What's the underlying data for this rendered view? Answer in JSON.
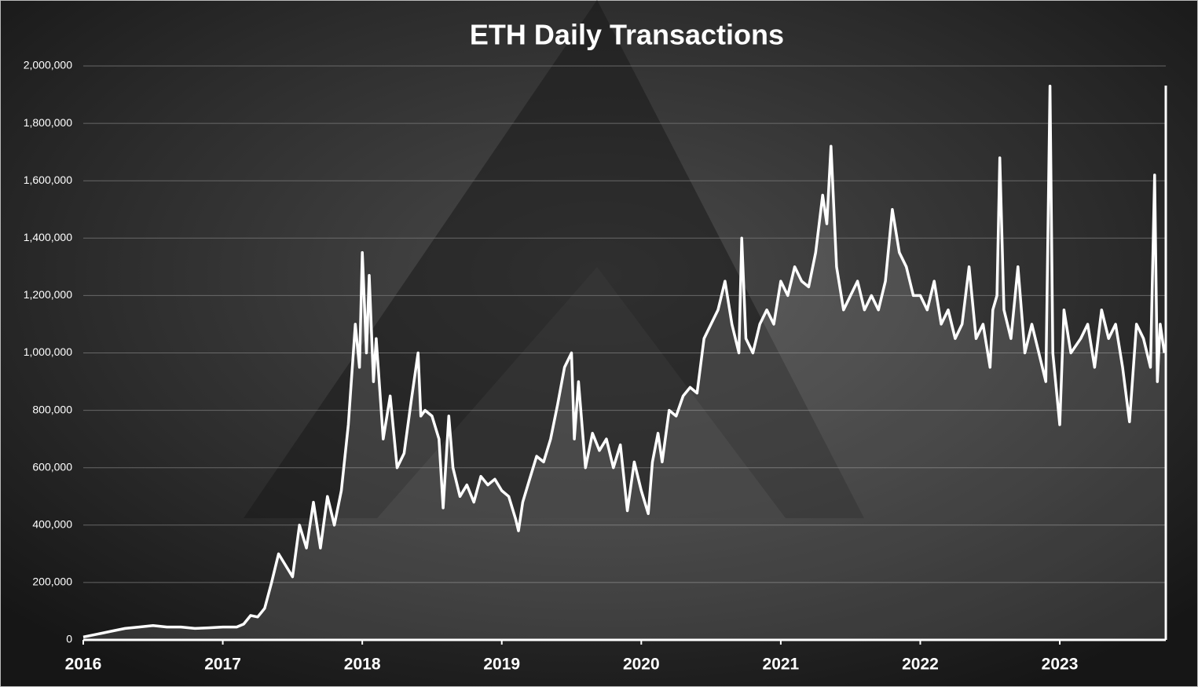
{
  "chart_data": {
    "type": "line",
    "title": "ETH Daily Transactions",
    "x": [
      2016.0,
      2016.1,
      2016.2,
      2016.3,
      2016.4,
      2016.5,
      2016.6,
      2016.7,
      2016.8,
      2016.9,
      2017.0,
      2017.1,
      2017.15,
      2017.2,
      2017.25,
      2017.3,
      2017.35,
      2017.4,
      2017.45,
      2017.5,
      2017.55,
      2017.6,
      2017.65,
      2017.7,
      2017.75,
      2017.8,
      2017.85,
      2017.9,
      2017.95,
      2017.98,
      2018.0,
      2018.03,
      2018.05,
      2018.08,
      2018.1,
      2018.15,
      2018.2,
      2018.25,
      2018.3,
      2018.35,
      2018.4,
      2018.42,
      2018.45,
      2018.5,
      2018.55,
      2018.58,
      2018.62,
      2018.65,
      2018.7,
      2018.75,
      2018.8,
      2018.85,
      2018.9,
      2018.95,
      2019.0,
      2019.05,
      2019.1,
      2019.12,
      2019.15,
      2019.2,
      2019.25,
      2019.3,
      2019.35,
      2019.4,
      2019.45,
      2019.5,
      2019.52,
      2019.55,
      2019.6,
      2019.65,
      2019.7,
      2019.75,
      2019.8,
      2019.85,
      2019.9,
      2019.95,
      2020.0,
      2020.05,
      2020.08,
      2020.12,
      2020.15,
      2020.2,
      2020.25,
      2020.3,
      2020.35,
      2020.4,
      2020.45,
      2020.5,
      2020.55,
      2020.6,
      2020.65,
      2020.7,
      2020.72,
      2020.75,
      2020.8,
      2020.85,
      2020.9,
      2020.95,
      2021.0,
      2021.05,
      2021.1,
      2021.15,
      2021.2,
      2021.25,
      2021.3,
      2021.33,
      2021.36,
      2021.4,
      2021.45,
      2021.5,
      2021.55,
      2021.6,
      2021.65,
      2021.7,
      2021.75,
      2021.8,
      2021.85,
      2021.9,
      2021.95,
      2022.0,
      2022.05,
      2022.1,
      2022.15,
      2022.2,
      2022.25,
      2022.3,
      2022.35,
      2022.4,
      2022.45,
      2022.5,
      2022.52,
      2022.55,
      2022.57,
      2022.6,
      2022.65,
      2022.7,
      2022.75,
      2022.8,
      2022.85,
      2022.9,
      2022.93,
      2022.95,
      2023.0,
      2023.03,
      2023.08,
      2023.15,
      2023.2,
      2023.25,
      2023.3,
      2023.35,
      2023.4,
      2023.45,
      2023.5,
      2023.55,
      2023.6,
      2023.65,
      2023.68,
      2023.7,
      2023.72,
      2023.75
    ],
    "series": [
      {
        "name": "ETH Daily Transactions",
        "color": "#ffffff",
        "values": [
          10000,
          20000,
          30000,
          40000,
          45000,
          50000,
          45000,
          45000,
          40000,
          42000,
          45000,
          45000,
          55000,
          85000,
          80000,
          110000,
          200000,
          300000,
          260000,
          220000,
          400000,
          320000,
          480000,
          320000,
          500000,
          400000,
          520000,
          750000,
          1100000,
          950000,
          1350000,
          1000000,
          1270000,
          900000,
          1050000,
          700000,
          850000,
          600000,
          650000,
          830000,
          1000000,
          780000,
          800000,
          780000,
          700000,
          460000,
          780000,
          600000,
          500000,
          540000,
          480000,
          570000,
          540000,
          560000,
          520000,
          500000,
          420000,
          380000,
          480000,
          560000,
          640000,
          620000,
          700000,
          820000,
          950000,
          1000000,
          700000,
          900000,
          600000,
          720000,
          660000,
          700000,
          600000,
          680000,
          450000,
          620000,
          520000,
          440000,
          620000,
          720000,
          620000,
          800000,
          780000,
          850000,
          880000,
          860000,
          1050000,
          1100000,
          1150000,
          1250000,
          1100000,
          1000000,
          1400000,
          1050000,
          1000000,
          1100000,
          1150000,
          1100000,
          1250000,
          1200000,
          1300000,
          1250000,
          1230000,
          1350000,
          1550000,
          1450000,
          1720000,
          1300000,
          1150000,
          1200000,
          1250000,
          1150000,
          1200000,
          1150000,
          1250000,
          1500000,
          1350000,
          1300000,
          1200000,
          1200000,
          1150000,
          1250000,
          1100000,
          1150000,
          1050000,
          1100000,
          1300000,
          1050000,
          1100000,
          950000,
          1150000,
          1200000,
          1680000,
          1150000,
          1050000,
          1300000,
          1000000,
          1100000,
          1000000,
          900000,
          1930000,
          1000000,
          750000,
          1150000,
          1000000,
          1050000,
          1100000,
          950000,
          1150000,
          1050000,
          1100000,
          950000,
          760000,
          1100000,
          1050000,
          950000,
          1620000,
          900000,
          1100000,
          1000000
        ]
      }
    ],
    "xlim": [
      2016,
      2023.76
    ],
    "xticks": [
      2016,
      2017,
      2018,
      2019,
      2020,
      2021,
      2022,
      2023
    ],
    "ylim": [
      0,
      2000000
    ],
    "yticks": [
      0,
      {
        "value": 200000,
        "label": "200,000"
      },
      {
        "value": 400000,
        "label": "400,000"
      },
      {
        "value": 600000,
        "label": "600,000"
      },
      {
        "value": 800000,
        "label": "800,000"
      },
      {
        "value": 1000000,
        "label": "1,000,000"
      },
      {
        "value": 1200000,
        "label": "1,200,000"
      },
      {
        "value": 1400000,
        "label": "1,400,000"
      },
      {
        "value": 1600000,
        "label": "1,600,000"
      },
      {
        "value": 1800000,
        "label": "1,800,000"
      },
      {
        "value": 2000000,
        "label": "2,000,000"
      }
    ],
    "grid": true
  }
}
